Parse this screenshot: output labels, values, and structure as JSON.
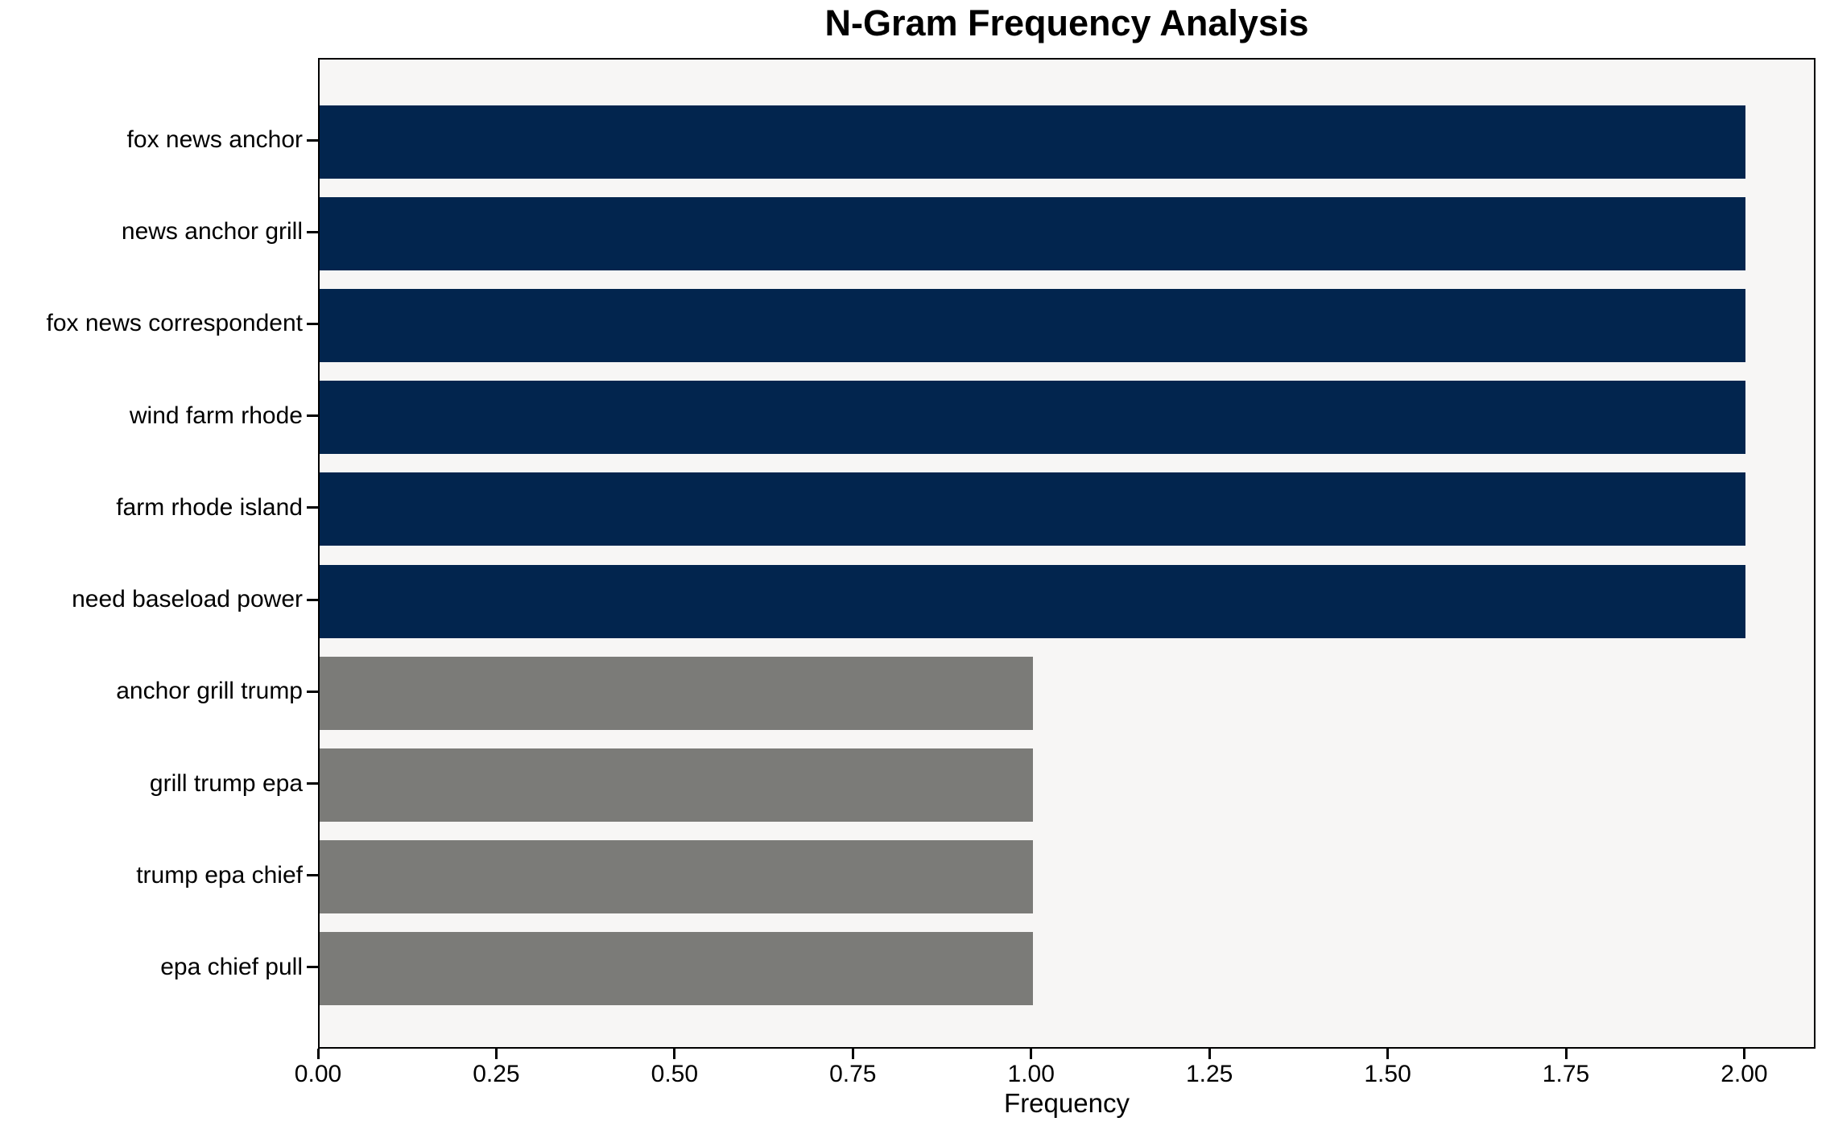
{
  "chart_data": {
    "type": "bar",
    "orientation": "horizontal",
    "title": "N-Gram Frequency Analysis",
    "xlabel": "Frequency",
    "ylabel": "",
    "categories": [
      "fox news anchor",
      "news anchor grill",
      "fox news correspondent",
      "wind farm rhode",
      "farm rhode island",
      "need baseload power",
      "anchor grill trump",
      "grill trump epa",
      "trump epa chief",
      "epa chief pull"
    ],
    "values": [
      2,
      2,
      2,
      2,
      2,
      2,
      1,
      1,
      1,
      1
    ],
    "bar_colors": [
      "#02254e",
      "#02254e",
      "#02254e",
      "#02254e",
      "#02254e",
      "#02254e",
      "#7b7b78",
      "#7b7b78",
      "#7b7b78",
      "#7b7b78"
    ],
    "xlim": [
      0,
      2.1
    ],
    "xticks": [
      "0.00",
      "0.25",
      "0.50",
      "0.75",
      "1.00",
      "1.25",
      "1.50",
      "1.75",
      "2.00"
    ],
    "xtick_values": [
      0,
      0.25,
      0.5,
      0.75,
      1.0,
      1.25,
      1.5,
      1.75,
      2.0
    ],
    "grid": false,
    "legend": null,
    "colors": {
      "bar_primary": "#02254e",
      "bar_secondary": "#7b7b78",
      "plot_background": "#f7f6f5",
      "figure_background": "#ffffff",
      "spine": "#000000",
      "text": "#000000"
    }
  }
}
